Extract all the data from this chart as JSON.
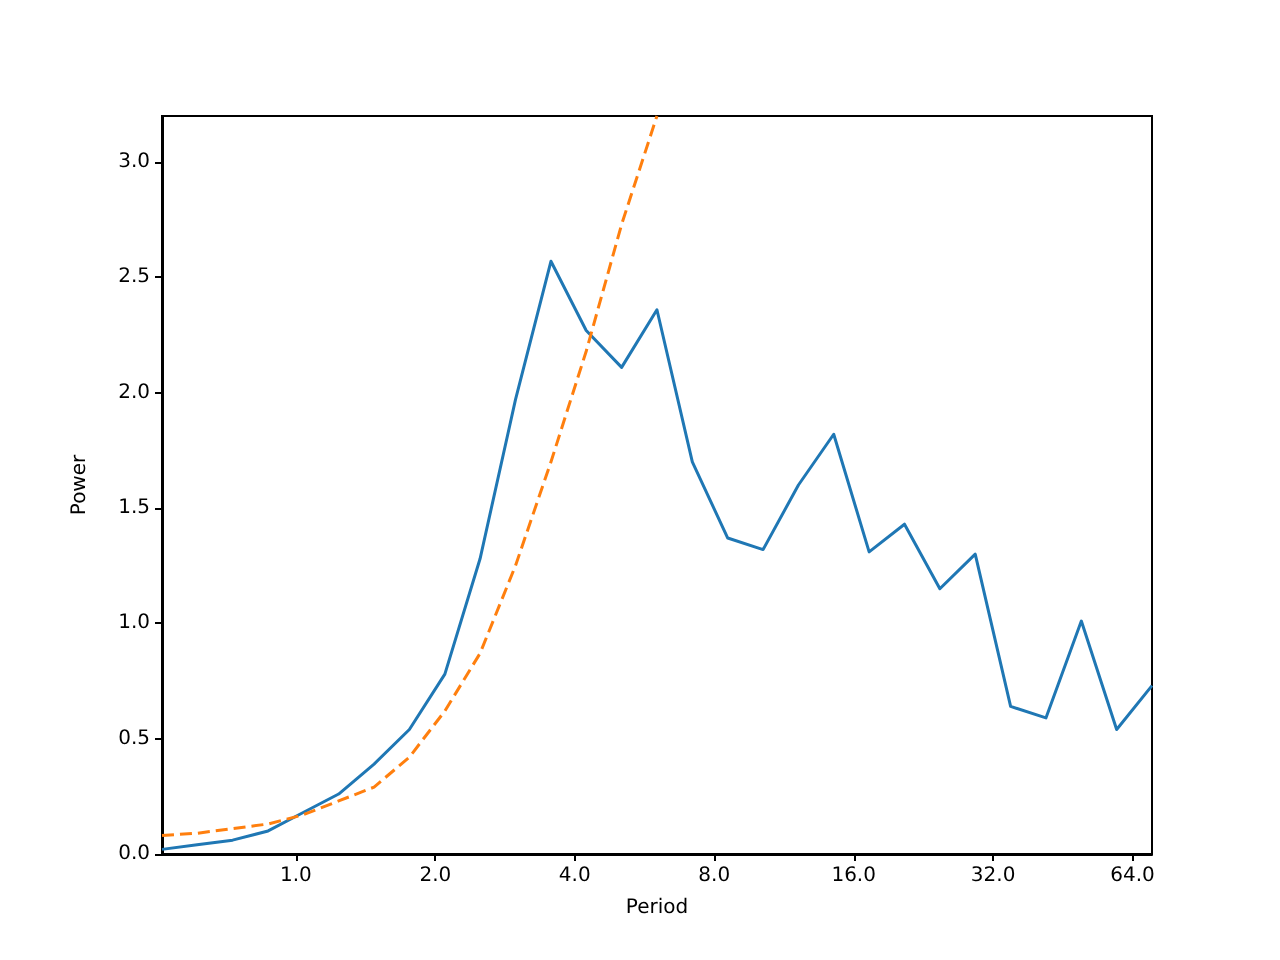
{
  "chart_data": {
    "type": "line",
    "xlabel": "Period",
    "ylabel": "Power",
    "log": "x",
    "grid": false,
    "xlim": [
      0.514,
      70.5
    ],
    "ylim": [
      0,
      3.2
    ],
    "xticks": [
      {
        "value": 1,
        "label": "1.0"
      },
      {
        "value": 2,
        "label": "2.0"
      },
      {
        "value": 4,
        "label": "4.0"
      },
      {
        "value": 8,
        "label": "8.0"
      },
      {
        "value": 16,
        "label": "16.0"
      },
      {
        "value": 32,
        "label": "32.0"
      },
      {
        "value": 64,
        "label": "64.0"
      }
    ],
    "yticks": [
      {
        "value": 0,
        "label": "0.0"
      },
      {
        "value": 0.5,
        "label": "0.5"
      },
      {
        "value": 1,
        "label": "1.0"
      },
      {
        "value": 1.5,
        "label": "1.5"
      },
      {
        "value": 2,
        "label": "2.0"
      },
      {
        "value": 2.5,
        "label": "2.5"
      },
      {
        "value": 3,
        "label": "3.0"
      }
    ],
    "series": [
      {
        "color": "#1f77b4",
        "line_style": "solid",
        "x": [
          0.514,
          0.612,
          0.73,
          0.871,
          1.037,
          1.237,
          1.475,
          1.758,
          2.097,
          2.498,
          2.979,
          3.553,
          4.234,
          5.049,
          6.018,
          7.175,
          8.556,
          10.2,
          12.16,
          14.49,
          17.28,
          20.6,
          24.56,
          29.28,
          34.91,
          41.61,
          49.62,
          59.14,
          70.5
        ],
        "values": [
          0.02,
          0.04,
          0.06,
          0.1,
          0.18,
          0.26,
          0.39,
          0.54,
          0.78,
          1.28,
          1.97,
          2.57,
          2.27,
          2.11,
          2.36,
          1.7,
          1.37,
          1.32,
          1.6,
          1.82,
          1.31,
          1.43,
          1.15,
          1.3,
          0.64,
          0.59,
          1.01,
          0.54,
          0.73
        ]
      },
      {
        "color": "#ff7f0e",
        "line_style": "dashed",
        "x": [
          0.514,
          0.612,
          0.73,
          0.871,
          1.037,
          1.237,
          1.475,
          1.758,
          2.097,
          2.498,
          2.979,
          3.553,
          4.234,
          5.049,
          6.018
        ],
        "values": [
          0.08,
          0.09,
          0.11,
          0.13,
          0.17,
          0.23,
          0.29,
          0.42,
          0.62,
          0.87,
          1.25,
          1.7,
          2.18,
          2.73,
          3.2
        ]
      }
    ]
  }
}
